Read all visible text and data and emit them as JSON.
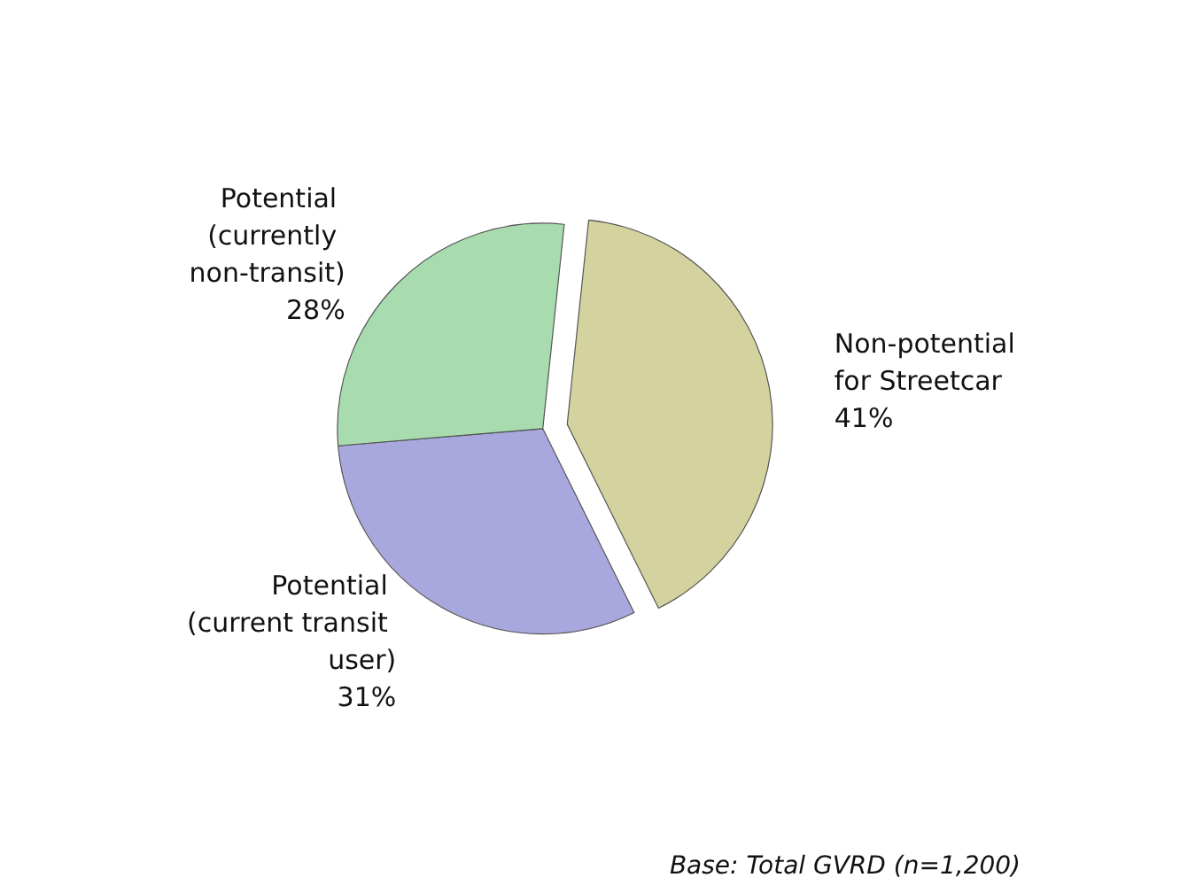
{
  "chart_data": {
    "type": "pie",
    "categories": [
      "Non-potential for Streetcar",
      "Potential (current transit user)",
      "Potential (currently non-transit)"
    ],
    "values": [
      41,
      31,
      28
    ],
    "value_labels": [
      "41%",
      "31%",
      "28%"
    ],
    "colors": [
      "#d4d29e",
      "#a8a8de",
      "#a8dcae"
    ],
    "annotations": [
      "Base: Total GVRD (n=1,200)"
    ],
    "legend": false
  }
}
